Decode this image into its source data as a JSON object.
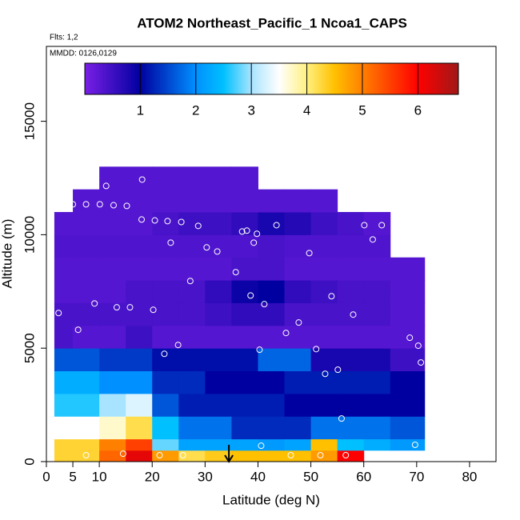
{
  "chart_data": {
    "type": "heatmap",
    "title": "ATOM2 Northeast_Pacific_1 Ncoa1_CAPS",
    "flights": "Flts: 1,2",
    "dates": "MMDD: 0126,0129",
    "x_label": "Latitude (deg N)",
    "y_label": "Altitude (m)",
    "xlim": [
      0,
      85
    ],
    "ylim": [
      0,
      18300
    ],
    "xticks": [
      0,
      5,
      10,
      20,
      30,
      40,
      50,
      60,
      70,
      80
    ],
    "yticks": [
      0,
      5000,
      10000,
      15000
    ],
    "x_edges": [
      1.5,
      5,
      10,
      15,
      20,
      25,
      30,
      35,
      40,
      45,
      50,
      55,
      60,
      65,
      71.5
    ],
    "y_edges": [
      0,
      500,
      1000,
      2000,
      3000,
      4000,
      5000,
      6000,
      7000,
      8000,
      9000,
      10000,
      11000,
      12000,
      13000
    ],
    "z": [
      [
        4.3,
        4.3,
        5.2,
        6.2,
        4.8,
        4.2,
        4.4,
        4.5,
        4.5,
        4.5,
        4.8,
        6.0,
        null,
        null
      ],
      [
        4.3,
        4.3,
        5.0,
        5.5,
        2.8,
        2.2,
        2.2,
        2.2,
        2.1,
        2.2,
        4.5,
        2.5,
        2.3,
        2.1
      ],
      [
        3.5,
        3.5,
        3.7,
        4.2,
        2.5,
        1.8,
        1.8,
        1.3,
        1.3,
        1.3,
        1.8,
        1.8,
        1.8,
        1.6
      ],
      [
        2.6,
        2.6,
        3.0,
        3.3,
        1.6,
        1.2,
        1.2,
        1.2,
        1.2,
        1.0,
        1.0,
        1.0,
        1.0,
        1.0
      ],
      [
        2.3,
        2.3,
        2.0,
        2.0,
        1.3,
        1.3,
        1.0,
        1.0,
        1.0,
        1.2,
        1.2,
        1.2,
        1.2,
        1.0
      ],
      [
        1.6,
        1.6,
        1.4,
        1.4,
        1.1,
        1.1,
        1.1,
        1.1,
        1.7,
        1.7,
        0.8,
        0.8,
        0.8,
        0.5
      ],
      [
        0.4,
        0.3,
        0.3,
        0.5,
        0.3,
        0.3,
        0.3,
        0.3,
        0.3,
        0.3,
        0.3,
        0.3,
        0.3,
        0.3
      ],
      [
        0.4,
        0.4,
        0.4,
        0.4,
        0.4,
        0.4,
        0.5,
        0.6,
        0.6,
        0.4,
        0.4,
        0.4,
        0.4,
        0.3
      ],
      [
        0.3,
        0.3,
        0.3,
        0.4,
        0.4,
        0.4,
        0.6,
        0.9,
        1.0,
        0.6,
        0.5,
        0.4,
        0.4,
        0.3
      ],
      [
        0.3,
        0.3,
        0.3,
        0.3,
        0.3,
        0.3,
        0.3,
        0.4,
        0.4,
        0.3,
        0.3,
        0.3,
        0.3,
        0.3
      ],
      [
        0.35,
        0.35,
        0.35,
        0.35,
        0.35,
        0.35,
        0.35,
        0.35,
        0.4,
        0.35,
        0.35,
        0.35,
        0.35,
        null
      ],
      [
        0.3,
        0.3,
        0.3,
        0.3,
        0.4,
        0.5,
        0.5,
        0.6,
        0.8,
        0.7,
        0.5,
        0.4,
        0.3,
        null
      ],
      [
        null,
        0.3,
        0.3,
        0.3,
        0.3,
        0.3,
        0.3,
        0.3,
        0.3,
        0.3,
        0.3,
        null,
        null,
        null
      ],
      [
        null,
        null,
        0.3,
        0.3,
        0.3,
        0.3,
        0.3,
        0.3,
        null,
        null,
        null,
        null,
        null,
        null
      ]
    ],
    "colorscale": [
      [
        0,
        "#7a1fe6"
      ],
      [
        1,
        "#0000a0"
      ],
      [
        2,
        "#0090ff"
      ],
      [
        2.5,
        "#00c0ff"
      ],
      [
        3,
        "#a8e4ff"
      ],
      [
        3.5,
        "#ffffff"
      ],
      [
        4,
        "#fff080"
      ],
      [
        4.5,
        "#ffc000"
      ],
      [
        5,
        "#ff8000"
      ],
      [
        6,
        "#ff0000"
      ],
      [
        6.73,
        "#a01818"
      ]
    ],
    "clim": [
      0,
      6.73
    ],
    "cticks": [
      1,
      2,
      3,
      4,
      5,
      6
    ],
    "points": {
      "x": [
        11.3,
        18.1,
        4.4,
        5.0,
        7.5,
        10.1,
        12.7,
        15.2,
        18.0,
        20.5,
        22.9,
        25.5,
        28.7,
        23.5,
        30.3,
        32.3,
        37.0,
        37.9,
        39.8,
        39.2,
        43.5,
        49.7,
        60.1,
        61.7,
        63.4,
        65.8,
        35.8,
        27.2,
        2.3,
        9.1,
        13.3,
        15.8,
        20.2,
        38.6,
        41.2,
        53.9,
        58.0,
        6.0,
        47.7,
        45.3,
        24.9,
        22.3,
        40.3,
        51.0,
        68.7,
        70.3,
        70.8,
        52.7,
        55.1,
        55.8,
        40.6,
        69.7,
        7.5,
        14.5,
        21.4,
        25.8,
        46.2,
        51.8,
        56.6
      ],
      "y": [
        12150,
        12430,
        11340,
        11340,
        11340,
        11340,
        11300,
        11270,
        10670,
        10630,
        10600,
        10560,
        10390,
        9650,
        9440,
        9260,
        10140,
        10180,
        10040,
        9650,
        10420,
        9190,
        10420,
        9790,
        10420,
        11020,
        8350,
        7960,
        6550,
        6970,
        6800,
        6800,
        6690,
        7320,
        6940,
        7290,
        6480,
        5810,
        6130,
        5670,
        5140,
        4750,
        4930,
        4960,
        5460,
        5110,
        4370,
        3870,
        4050,
        1900,
        700,
        740,
        280,
        350,
        280,
        280,
        280,
        280,
        280
      ]
    },
    "point_color": "#ffffff",
    "marker_latitude": 34.5
  }
}
